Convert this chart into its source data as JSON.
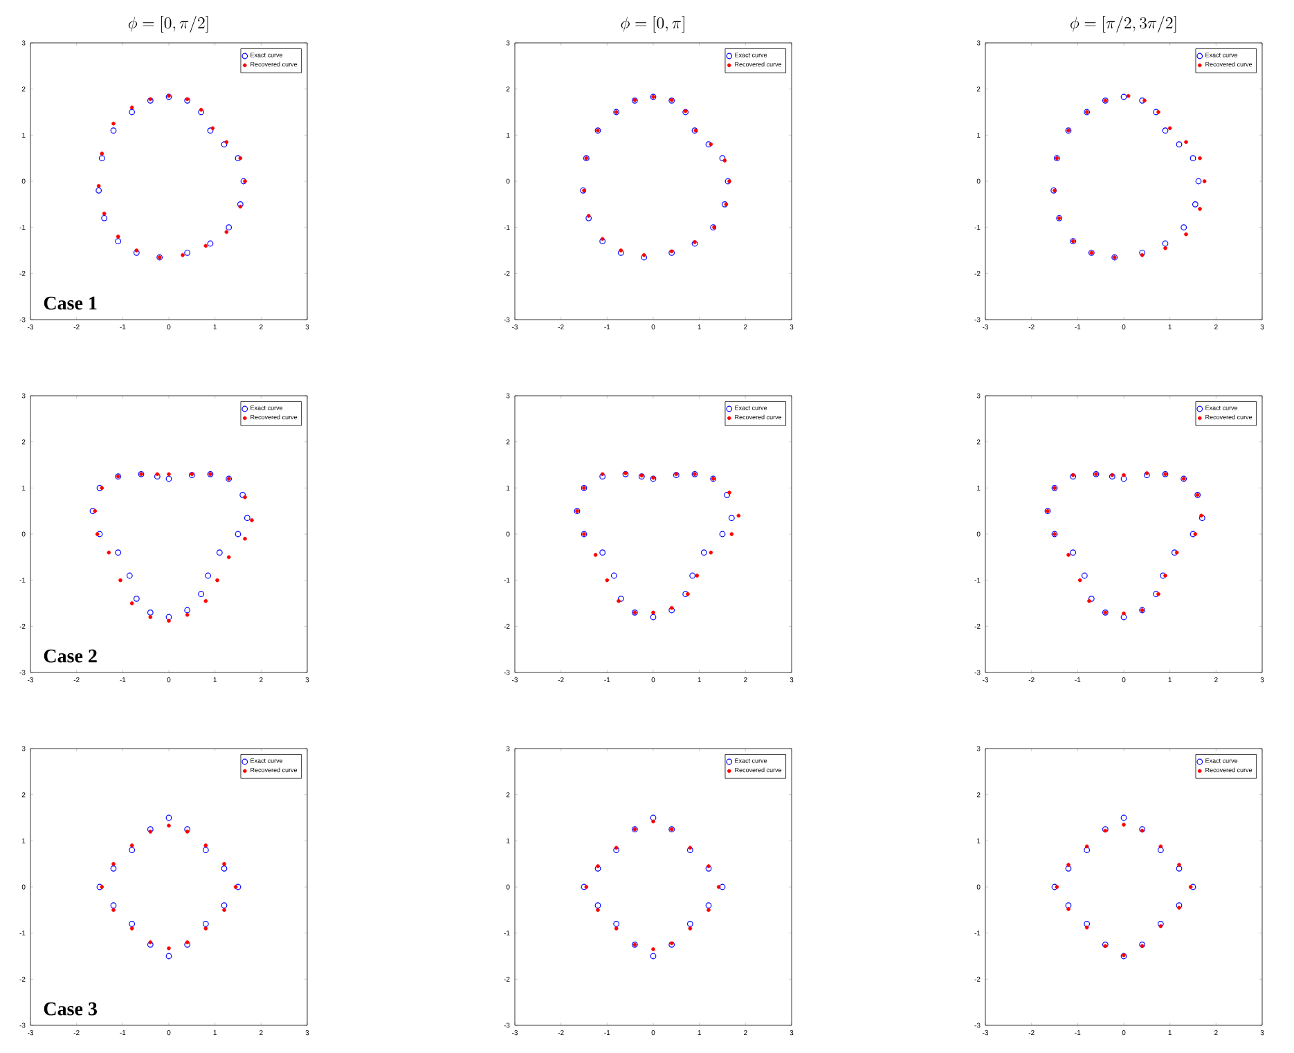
{
  "chart_data": [
    {
      "type": "scatter",
      "title": "\\phi = [0, \\pi/2]",
      "annotations": [
        "Case 1"
      ],
      "xlim": [
        -3,
        3
      ],
      "ylim": [
        -3,
        3
      ],
      "xticks": [
        -3,
        -2,
        -1,
        0,
        1,
        2,
        3
      ],
      "yticks": [
        -3,
        -2,
        -1,
        0,
        1,
        2,
        3
      ],
      "legend": "top right",
      "marker": "circle",
      "series": [
        {
          "name": "Exact curve",
          "color": "#0000ff",
          "x": [
            0,
            0.4,
            0.7,
            0.9,
            1.2,
            1.5,
            1.62,
            1.55,
            1.3,
            0.9,
            0.4,
            -0.2,
            -0.7,
            -1.1,
            -1.4,
            -1.52,
            -1.45,
            -1.2,
            -0.8,
            -0.4
          ],
          "values": [
            1.83,
            1.75,
            1.5,
            1.1,
            0.8,
            0.5,
            0,
            -0.5,
            -1.0,
            -1.35,
            -1.55,
            -1.65,
            -1.55,
            -1.3,
            -0.8,
            -0.2,
            0.5,
            1.1,
            1.5,
            1.75
          ]
        },
        {
          "name": "Recovered curve",
          "color": "#ff0000",
          "x": [
            0,
            0.4,
            0.7,
            0.95,
            1.25,
            1.55,
            1.65,
            1.55,
            1.25,
            0.8,
            0.3,
            -0.2,
            -0.7,
            -1.1,
            -1.4,
            -1.52,
            -1.45,
            -1.2,
            -0.8,
            -0.4
          ],
          "values": [
            1.85,
            1.78,
            1.55,
            1.15,
            0.85,
            0.5,
            0,
            -0.55,
            -1.1,
            -1.4,
            -1.6,
            -1.65,
            -1.5,
            -1.2,
            -0.7,
            -0.1,
            0.6,
            1.25,
            1.6,
            1.78
          ]
        }
      ]
    },
    {
      "type": "scatter",
      "title": "\\phi = [0, \\pi]",
      "xlim": [
        -3,
        3
      ],
      "ylim": [
        -3,
        3
      ],
      "xticks": [
        -3,
        -2,
        -1,
        0,
        1,
        2,
        3
      ],
      "yticks": [
        -3,
        -2,
        -1,
        0,
        1,
        2,
        3
      ],
      "legend": "top right",
      "marker": "circle",
      "series": [
        {
          "name": "Exact curve",
          "color": "#0000ff",
          "x": [
            0,
            0.4,
            0.7,
            0.9,
            1.2,
            1.5,
            1.62,
            1.55,
            1.3,
            0.9,
            0.4,
            -0.2,
            -0.7,
            -1.1,
            -1.4,
            -1.52,
            -1.45,
            -1.2,
            -0.8,
            -0.4
          ],
          "values": [
            1.83,
            1.75,
            1.5,
            1.1,
            0.8,
            0.5,
            0,
            -0.5,
            -1.0,
            -1.35,
            -1.55,
            -1.65,
            -1.55,
            -1.3,
            -0.8,
            -0.2,
            0.5,
            1.1,
            1.5,
            1.75
          ]
        },
        {
          "name": "Recovered curve",
          "color": "#ff0000",
          "x": [
            0,
            0.4,
            0.7,
            0.92,
            1.25,
            1.55,
            1.65,
            1.58,
            1.32,
            0.9,
            0.4,
            -0.2,
            -0.7,
            -1.1,
            -1.4,
            -1.5,
            -1.45,
            -1.2,
            -0.8,
            -0.4
          ],
          "values": [
            1.83,
            1.76,
            1.52,
            1.1,
            0.8,
            0.45,
            0,
            -0.5,
            -1.0,
            -1.32,
            -1.52,
            -1.6,
            -1.5,
            -1.25,
            -0.75,
            -0.2,
            0.5,
            1.1,
            1.5,
            1.76
          ]
        }
      ]
    },
    {
      "type": "scatter",
      "title": "\\phi = [\\pi/2, 3\\pi/2]",
      "xlim": [
        -3,
        3
      ],
      "ylim": [
        -3,
        3
      ],
      "xticks": [
        -3,
        -2,
        -1,
        0,
        1,
        2,
        3
      ],
      "yticks": [
        -3,
        -2,
        -1,
        0,
        1,
        2,
        3
      ],
      "legend": "top right",
      "marker": "circle",
      "series": [
        {
          "name": "Exact curve",
          "color": "#0000ff",
          "x": [
            0,
            0.4,
            0.7,
            0.9,
            1.2,
            1.5,
            1.62,
            1.55,
            1.3,
            0.9,
            0.4,
            -0.2,
            -0.7,
            -1.1,
            -1.4,
            -1.52,
            -1.45,
            -1.2,
            -0.8,
            -0.4
          ],
          "values": [
            1.83,
            1.75,
            1.5,
            1.1,
            0.8,
            0.5,
            0,
            -0.5,
            -1.0,
            -1.35,
            -1.55,
            -1.65,
            -1.55,
            -1.3,
            -0.8,
            -0.2,
            0.5,
            1.1,
            1.5,
            1.75
          ]
        },
        {
          "name": "Recovered curve",
          "color": "#ff0000",
          "x": [
            0.1,
            0.45,
            0.75,
            1.0,
            1.35,
            1.65,
            1.75,
            1.65,
            1.35,
            0.9,
            0.4,
            -0.2,
            -0.7,
            -1.1,
            -1.4,
            -1.5,
            -1.45,
            -1.2,
            -0.8,
            -0.4
          ],
          "values": [
            1.85,
            1.75,
            1.5,
            1.15,
            0.85,
            0.5,
            0,
            -0.6,
            -1.15,
            -1.45,
            -1.6,
            -1.65,
            -1.55,
            -1.3,
            -0.8,
            -0.2,
            0.5,
            1.1,
            1.5,
            1.75
          ]
        }
      ]
    },
    {
      "type": "scatter",
      "annotations": [
        "Case 2"
      ],
      "xlim": [
        -3,
        3
      ],
      "ylim": [
        -3,
        3
      ],
      "xticks": [
        -3,
        -2,
        -1,
        0,
        1,
        2,
        3
      ],
      "yticks": [
        -3,
        -2,
        -1,
        0,
        1,
        2,
        3
      ],
      "legend": "top right",
      "marker": "circle",
      "series": [
        {
          "name": "Exact curve",
          "color": "#0000ff",
          "x": [
            0,
            0.5,
            0.9,
            1.3,
            1.6,
            1.7,
            1.5,
            1.1,
            0.85,
            0.7,
            0.4,
            0,
            -0.4,
            -0.7,
            -0.85,
            -1.1,
            -1.5,
            -1.65,
            -1.5,
            -1.1,
            -0.6,
            -0.25
          ],
          "values": [
            1.2,
            1.28,
            1.3,
            1.2,
            0.85,
            0.35,
            0,
            -0.4,
            -0.9,
            -1.3,
            -1.65,
            -1.8,
            -1.7,
            -1.4,
            -0.9,
            -0.4,
            0,
            0.5,
            1.0,
            1.25,
            1.3,
            1.25
          ]
        },
        {
          "name": "Recovered curve",
          "color": "#ff0000",
          "x": [
            0,
            0.5,
            0.9,
            1.3,
            1.65,
            1.8,
            1.65,
            1.3,
            1.05,
            0.8,
            0.4,
            0,
            -0.4,
            -0.8,
            -1.05,
            -1.3,
            -1.55,
            -1.6,
            -1.45,
            -1.1,
            -0.6,
            -0.25
          ],
          "values": [
            1.3,
            1.3,
            1.3,
            1.2,
            0.8,
            0.3,
            -0.1,
            -0.5,
            -1.0,
            -1.45,
            -1.75,
            -1.88,
            -1.8,
            -1.5,
            -1.0,
            -0.4,
            0,
            0.5,
            1.0,
            1.25,
            1.3,
            1.3
          ]
        }
      ]
    },
    {
      "type": "scatter",
      "xlim": [
        -3,
        3
      ],
      "ylim": [
        -3,
        3
      ],
      "xticks": [
        -3,
        -2,
        -1,
        0,
        1,
        2,
        3
      ],
      "yticks": [
        -3,
        -2,
        -1,
        0,
        1,
        2,
        3
      ],
      "legend": "top right",
      "marker": "circle",
      "series": [
        {
          "name": "Exact curve",
          "color": "#0000ff",
          "x": [
            0,
            0.5,
            0.9,
            1.3,
            1.6,
            1.7,
            1.5,
            1.1,
            0.85,
            0.7,
            0.4,
            0,
            -0.4,
            -0.7,
            -0.85,
            -1.1,
            -1.5,
            -1.65,
            -1.5,
            -1.1,
            -0.6,
            -0.25
          ],
          "values": [
            1.2,
            1.28,
            1.3,
            1.2,
            0.85,
            0.35,
            0,
            -0.4,
            -0.9,
            -1.3,
            -1.65,
            -1.8,
            -1.7,
            -1.4,
            -0.9,
            -0.4,
            0,
            0.5,
            1.0,
            1.25,
            1.3,
            1.25
          ]
        },
        {
          "name": "Recovered curve",
          "color": "#ff0000",
          "x": [
            0,
            0.5,
            0.9,
            1.3,
            1.65,
            1.85,
            1.7,
            1.25,
            0.95,
            0.75,
            0.4,
            0,
            -0.4,
            -0.75,
            -1.0,
            -1.25,
            -1.5,
            -1.65,
            -1.5,
            -1.1,
            -0.6,
            -0.25
          ],
          "values": [
            1.22,
            1.3,
            1.3,
            1.2,
            0.9,
            0.4,
            0,
            -0.4,
            -0.9,
            -1.3,
            -1.6,
            -1.7,
            -1.7,
            -1.45,
            -1.0,
            -0.45,
            0,
            0.5,
            1.0,
            1.3,
            1.32,
            1.27
          ]
        }
      ]
    },
    {
      "type": "scatter",
      "xlim": [
        -3,
        3
      ],
      "ylim": [
        -3,
        3
      ],
      "xticks": [
        -3,
        -2,
        -1,
        0,
        1,
        2,
        3
      ],
      "yticks": [
        -3,
        -2,
        -1,
        0,
        1,
        2,
        3
      ],
      "legend": "top right",
      "marker": "circle",
      "series": [
        {
          "name": "Exact curve",
          "color": "#0000ff",
          "x": [
            0,
            0.5,
            0.9,
            1.3,
            1.6,
            1.7,
            1.5,
            1.1,
            0.85,
            0.7,
            0.4,
            0,
            -0.4,
            -0.7,
            -0.85,
            -1.1,
            -1.5,
            -1.65,
            -1.5,
            -1.1,
            -0.6,
            -0.25
          ],
          "values": [
            1.2,
            1.28,
            1.3,
            1.2,
            0.85,
            0.35,
            0,
            -0.4,
            -0.9,
            -1.3,
            -1.65,
            -1.8,
            -1.7,
            -1.4,
            -0.9,
            -0.4,
            0,
            0.5,
            1.0,
            1.25,
            1.3,
            1.25
          ]
        },
        {
          "name": "Recovered curve",
          "color": "#ff0000",
          "x": [
            0,
            0.5,
            0.9,
            1.3,
            1.6,
            1.68,
            1.55,
            1.15,
            0.9,
            0.75,
            0.4,
            0,
            -0.4,
            -0.75,
            -0.95,
            -1.2,
            -1.5,
            -1.65,
            -1.5,
            -1.1,
            -0.6,
            -0.25
          ],
          "values": [
            1.28,
            1.32,
            1.3,
            1.2,
            0.85,
            0.4,
            0,
            -0.4,
            -0.9,
            -1.3,
            -1.65,
            -1.72,
            -1.7,
            -1.45,
            -1.0,
            -0.45,
            0,
            0.5,
            1.0,
            1.28,
            1.3,
            1.28
          ]
        }
      ]
    },
    {
      "type": "scatter",
      "annotations": [
        "Case 3"
      ],
      "xlim": [
        -3,
        3
      ],
      "ylim": [
        -3,
        3
      ],
      "xticks": [
        -3,
        -2,
        -1,
        0,
        1,
        2,
        3
      ],
      "yticks": [
        -3,
        -2,
        -1,
        0,
        1,
        2,
        3
      ],
      "legend": "top right",
      "marker": "circle",
      "series": [
        {
          "name": "Exact curve",
          "color": "#0000ff",
          "x": [
            0,
            0.4,
            0.8,
            1.2,
            1.5,
            1.2,
            0.8,
            0.4,
            0,
            -0.4,
            -0.8,
            -1.2,
            -1.5,
            -1.2,
            -0.8,
            -0.4
          ],
          "values": [
            1.5,
            1.25,
            0.8,
            0.4,
            0,
            -0.4,
            -0.8,
            -1.25,
            -1.5,
            -1.25,
            -0.8,
            -0.4,
            0,
            0.4,
            0.8,
            1.25
          ]
        },
        {
          "name": "Recovered curve",
          "color": "#ff0000",
          "x": [
            0,
            0.4,
            0.8,
            1.2,
            1.45,
            1.2,
            0.8,
            0.4,
            0,
            -0.4,
            -0.8,
            -1.2,
            -1.45,
            -1.2,
            -0.8,
            -0.4
          ],
          "values": [
            1.33,
            1.2,
            0.9,
            0.5,
            0,
            -0.5,
            -0.9,
            -1.2,
            -1.33,
            -1.2,
            -0.9,
            -0.5,
            0,
            0.5,
            0.9,
            1.2
          ]
        }
      ]
    },
    {
      "type": "scatter",
      "xlim": [
        -3,
        3
      ],
      "ylim": [
        -3,
        3
      ],
      "xticks": [
        -3,
        -2,
        -1,
        0,
        1,
        2,
        3
      ],
      "yticks": [
        -3,
        -2,
        -1,
        0,
        1,
        2,
        3
      ],
      "legend": "top right",
      "marker": "circle",
      "series": [
        {
          "name": "Exact curve",
          "color": "#0000ff",
          "x": [
            0,
            0.4,
            0.8,
            1.2,
            1.5,
            1.2,
            0.8,
            0.4,
            0,
            -0.4,
            -0.8,
            -1.2,
            -1.5,
            -1.2,
            -0.8,
            -0.4
          ],
          "values": [
            1.5,
            1.25,
            0.8,
            0.4,
            0,
            -0.4,
            -0.8,
            -1.25,
            -1.5,
            -1.25,
            -0.8,
            -0.4,
            0,
            0.4,
            0.8,
            1.25
          ]
        },
        {
          "name": "Recovered curve",
          "color": "#ff0000",
          "x": [
            0,
            0.4,
            0.8,
            1.2,
            1.42,
            1.2,
            0.8,
            0.4,
            0,
            -0.4,
            -0.8,
            -1.2,
            -1.45,
            -1.2,
            -0.8,
            -0.4
          ],
          "values": [
            1.42,
            1.25,
            0.85,
            0.45,
            0,
            -0.5,
            -0.9,
            -1.22,
            -1.35,
            -1.25,
            -0.9,
            -0.5,
            0,
            0.45,
            0.85,
            1.25
          ]
        }
      ]
    },
    {
      "type": "scatter",
      "xlim": [
        -3,
        3
      ],
      "ylim": [
        -3,
        3
      ],
      "xticks": [
        -3,
        -2,
        -1,
        0,
        1,
        2,
        3
      ],
      "yticks": [
        -3,
        -2,
        -1,
        0,
        1,
        2,
        3
      ],
      "legend": "top right",
      "marker": "circle",
      "series": [
        {
          "name": "Exact curve",
          "color": "#0000ff",
          "x": [
            0,
            0.4,
            0.8,
            1.2,
            1.5,
            1.2,
            0.8,
            0.4,
            0,
            -0.4,
            -0.8,
            -1.2,
            -1.5,
            -1.2,
            -0.8,
            -0.4
          ],
          "values": [
            1.5,
            1.25,
            0.8,
            0.4,
            0,
            -0.4,
            -0.8,
            -1.25,
            -1.5,
            -1.25,
            -0.8,
            -0.4,
            0,
            0.4,
            0.8,
            1.25
          ]
        },
        {
          "name": "Recovered curve",
          "color": "#ff0000",
          "x": [
            0,
            0.4,
            0.8,
            1.2,
            1.45,
            1.2,
            0.8,
            0.4,
            0,
            -0.4,
            -0.8,
            -1.2,
            -1.45,
            -1.2,
            -0.8,
            -0.4
          ],
          "values": [
            1.35,
            1.22,
            0.88,
            0.48,
            0,
            -0.45,
            -0.85,
            -1.28,
            -1.48,
            -1.28,
            -0.88,
            -0.48,
            0,
            0.48,
            0.88,
            1.22
          ]
        }
      ]
    }
  ]
}
